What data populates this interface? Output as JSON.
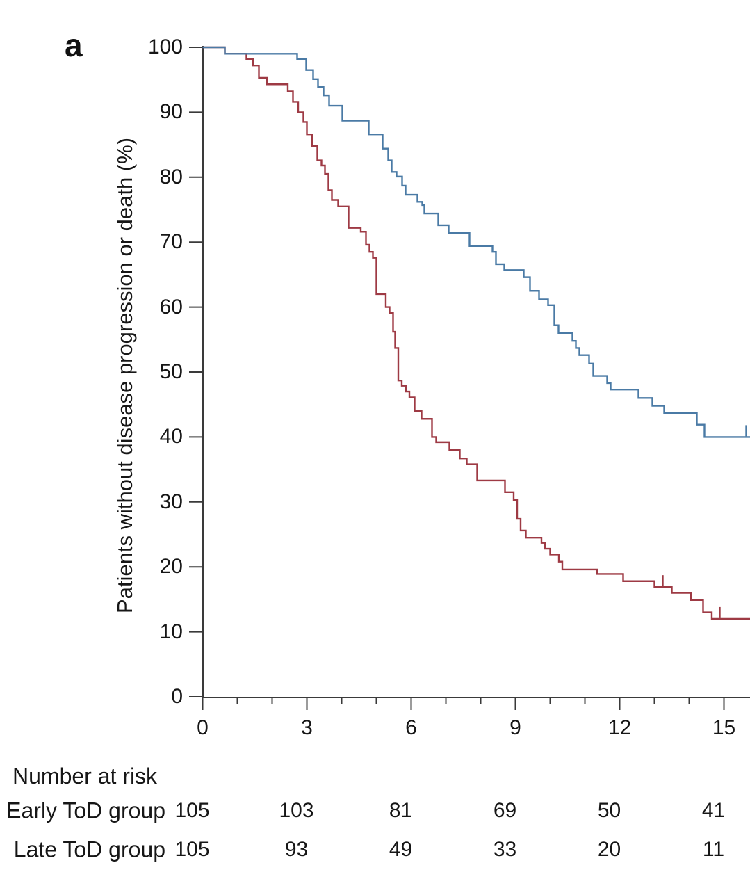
{
  "panel_label": "a",
  "colors": {
    "early_group": "#4a7aa5",
    "late_group": "#9e3a44",
    "axis": "#3a3a3a",
    "text": "#161616"
  },
  "axes": {
    "y_label": "Patients without disease progression or death (%)",
    "y_ticks": [
      0,
      10,
      20,
      30,
      40,
      50,
      60,
      70,
      80,
      90,
      100
    ],
    "x_major_ticks": [
      0,
      3,
      6,
      9,
      12,
      15
    ],
    "x_minor_ticks": [
      1,
      2,
      4,
      5,
      7,
      8,
      10,
      11,
      13,
      14
    ],
    "x_range_drawn": [
      0,
      15.8
    ],
    "y_range": [
      0,
      100
    ]
  },
  "chart_data": {
    "type": "line",
    "subtype": "kaplan-meier-step",
    "title": "",
    "xlabel": "",
    "ylabel": "Patients without disease progression or death (%)",
    "xlim": [
      0,
      15.8
    ],
    "ylim": [
      0,
      100
    ],
    "grid": false,
    "legend": "none (groups identified in number-at-risk table)",
    "series": [
      {
        "name": "Early ToD group",
        "color": "#4a7aa5",
        "end_x": 15.8,
        "points": [
          [
            0,
            100
          ],
          [
            0.64,
            99
          ],
          [
            2.72,
            98.2
          ],
          [
            2.98,
            96.5
          ],
          [
            3.18,
            95.1
          ],
          [
            3.32,
            93.9
          ],
          [
            3.48,
            92.6
          ],
          [
            3.64,
            91.0
          ],
          [
            4.02,
            88.7
          ],
          [
            4.78,
            86.6
          ],
          [
            5.18,
            84.4
          ],
          [
            5.34,
            82.6
          ],
          [
            5.44,
            80.8
          ],
          [
            5.58,
            80.1
          ],
          [
            5.74,
            78.7
          ],
          [
            5.84,
            77.3
          ],
          [
            6.18,
            76.2
          ],
          [
            6.32,
            75.7
          ],
          [
            6.38,
            74.4
          ],
          [
            6.78,
            72.6
          ],
          [
            7.08,
            71.4
          ],
          [
            7.68,
            69.4
          ],
          [
            8.34,
            68.5
          ],
          [
            8.44,
            66.6
          ],
          [
            8.68,
            65.7
          ],
          [
            9.24,
            64.6
          ],
          [
            9.42,
            62.5
          ],
          [
            9.68,
            61.2
          ],
          [
            9.94,
            60.3
          ],
          [
            10.12,
            57.2
          ],
          [
            10.24,
            56.0
          ],
          [
            10.64,
            54.8
          ],
          [
            10.74,
            53.7
          ],
          [
            10.84,
            52.6
          ],
          [
            11.12,
            51.3
          ],
          [
            11.24,
            49.4
          ],
          [
            11.64,
            48.3
          ],
          [
            11.74,
            47.3
          ],
          [
            12.54,
            46.0
          ],
          [
            12.94,
            44.8
          ],
          [
            13.28,
            43.7
          ],
          [
            14.22,
            41.9
          ],
          [
            14.44,
            40.0
          ]
        ],
        "censor_marks": [
          [
            15.64,
            40.0
          ]
        ]
      },
      {
        "name": "Late ToD group",
        "color": "#9e3a44",
        "end_x": 15.8,
        "points": [
          [
            0,
            100
          ],
          [
            0.64,
            99
          ],
          [
            1.26,
            98.2
          ],
          [
            1.45,
            97.2
          ],
          [
            1.62,
            95.3
          ],
          [
            1.85,
            94.3
          ],
          [
            2.45,
            93.2
          ],
          [
            2.6,
            91.6
          ],
          [
            2.75,
            90.0
          ],
          [
            2.9,
            88.5
          ],
          [
            3.0,
            86.6
          ],
          [
            3.15,
            84.8
          ],
          [
            3.3,
            82.6
          ],
          [
            3.42,
            81.8
          ],
          [
            3.52,
            80.5
          ],
          [
            3.62,
            78.0
          ],
          [
            3.72,
            76.5
          ],
          [
            3.9,
            75.5
          ],
          [
            4.2,
            72.2
          ],
          [
            4.55,
            71.6
          ],
          [
            4.7,
            69.6
          ],
          [
            4.8,
            68.5
          ],
          [
            4.9,
            67.6
          ],
          [
            5.0,
            62.0
          ],
          [
            5.27,
            60.0
          ],
          [
            5.38,
            59.1
          ],
          [
            5.48,
            56.2
          ],
          [
            5.54,
            53.7
          ],
          [
            5.63,
            48.7
          ],
          [
            5.73,
            47.9
          ],
          [
            5.85,
            47.0
          ],
          [
            5.95,
            46.1
          ],
          [
            6.1,
            44.0
          ],
          [
            6.3,
            42.8
          ],
          [
            6.6,
            40.0
          ],
          [
            6.72,
            39.2
          ],
          [
            7.1,
            38.0
          ],
          [
            7.4,
            36.7
          ],
          [
            7.6,
            35.8
          ],
          [
            7.9,
            33.3
          ],
          [
            8.7,
            31.5
          ],
          [
            8.95,
            30.3
          ],
          [
            9.05,
            27.4
          ],
          [
            9.15,
            25.6
          ],
          [
            9.3,
            24.5
          ],
          [
            9.75,
            23.7
          ],
          [
            9.85,
            22.8
          ],
          [
            10.0,
            21.9
          ],
          [
            10.25,
            20.8
          ],
          [
            10.35,
            19.6
          ],
          [
            11.35,
            18.9
          ],
          [
            12.1,
            17.8
          ],
          [
            13.0,
            16.9
          ],
          [
            13.5,
            16.0
          ],
          [
            14.05,
            14.9
          ],
          [
            14.4,
            13.0
          ],
          [
            14.65,
            12.0
          ]
        ],
        "censor_marks": [
          [
            13.24,
            16.9
          ],
          [
            14.88,
            12.0
          ]
        ]
      }
    ]
  },
  "risk_table": {
    "title": "Number at risk",
    "times": [
      0,
      3,
      6,
      9,
      12,
      15
    ],
    "rows": [
      {
        "label": "Early ToD group",
        "values": [
          105,
          103,
          81,
          69,
          50,
          41
        ]
      },
      {
        "label": "Late ToD group",
        "values": [
          105,
          93,
          49,
          33,
          20,
          11
        ]
      }
    ]
  }
}
